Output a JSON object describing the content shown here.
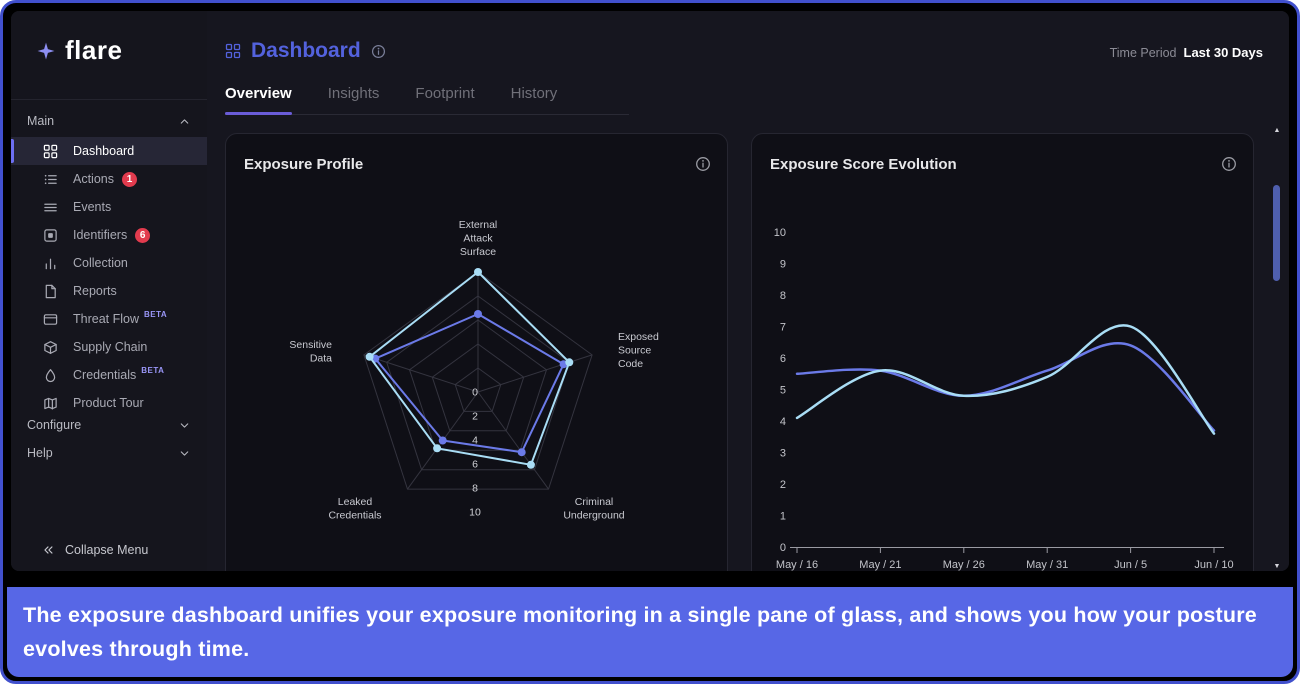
{
  "sidebar": {
    "brand": "flare",
    "section_main": "Main",
    "items": [
      {
        "label": "Dashboard",
        "icon": "grid",
        "active": true
      },
      {
        "label": "Actions",
        "icon": "checklist",
        "badge": "1"
      },
      {
        "label": "Events",
        "icon": "rows"
      },
      {
        "label": "Identifiers",
        "icon": "scan",
        "badge": "6"
      },
      {
        "label": "Collection",
        "icon": "bars"
      },
      {
        "label": "Reports",
        "icon": "file"
      },
      {
        "label": "Threat Flow",
        "icon": "window",
        "tag": "BETA"
      },
      {
        "label": "Supply Chain",
        "icon": "box"
      },
      {
        "label": "Credentials",
        "icon": "droplet",
        "tag": "BETA"
      },
      {
        "label": "Product Tour",
        "icon": "map"
      }
    ],
    "configure": "Configure",
    "help": "Help",
    "collapse": "Collapse Menu"
  },
  "header": {
    "title": "Dashboard",
    "time_period_label": "Time Period",
    "time_period_value": "Last 30 Days"
  },
  "tabs": {
    "items": [
      "Overview",
      "Insights",
      "Footprint",
      "History"
    ],
    "active": "Overview"
  },
  "colors": {
    "accent": "#5362dd",
    "series_light": "#a9ddf5",
    "series_dark": "#6b7ae8",
    "badge_red": "#e23b4e",
    "caption_bg": "#5767e6"
  },
  "chart_data": [
    {
      "type": "radar",
      "title": "Exposure Profile",
      "axes": [
        "External Attack Surface",
        "Exposed Source Code",
        "Criminal Underground",
        "Leaked Credentials",
        "Sensitive Data"
      ],
      "scale": [
        0,
        2,
        4,
        6,
        8,
        10
      ],
      "max": 10,
      "series": [
        {
          "color": "#6b7ae8",
          "values": [
            6.5,
            7.5,
            6.2,
            5.0,
            9.0
          ]
        },
        {
          "color": "#a9ddf5",
          "values": [
            10,
            8.0,
            7.5,
            5.8,
            9.5
          ]
        }
      ]
    },
    {
      "type": "line",
      "title": "Exposure Score Evolution",
      "x": [
        "May / 16",
        "May / 21",
        "May / 26",
        "May / 31",
        "Jun / 5",
        "Jun / 10"
      ],
      "ylim": [
        0,
        10
      ],
      "yticks": [
        0,
        1,
        2,
        3,
        4,
        5,
        6,
        7,
        8,
        9,
        10
      ],
      "series": [
        {
          "color": "#6b7ae8",
          "values": [
            5.5,
            5.6,
            4.8,
            5.6,
            6.4,
            3.7
          ]
        },
        {
          "color": "#a9ddf5",
          "values": [
            4.1,
            5.6,
            4.8,
            5.4,
            7.0,
            3.6
          ]
        }
      ]
    }
  ],
  "caption": "The exposure dashboard unifies your exposure monitoring in a single pane of glass, and shows you how your posture evolves through time."
}
